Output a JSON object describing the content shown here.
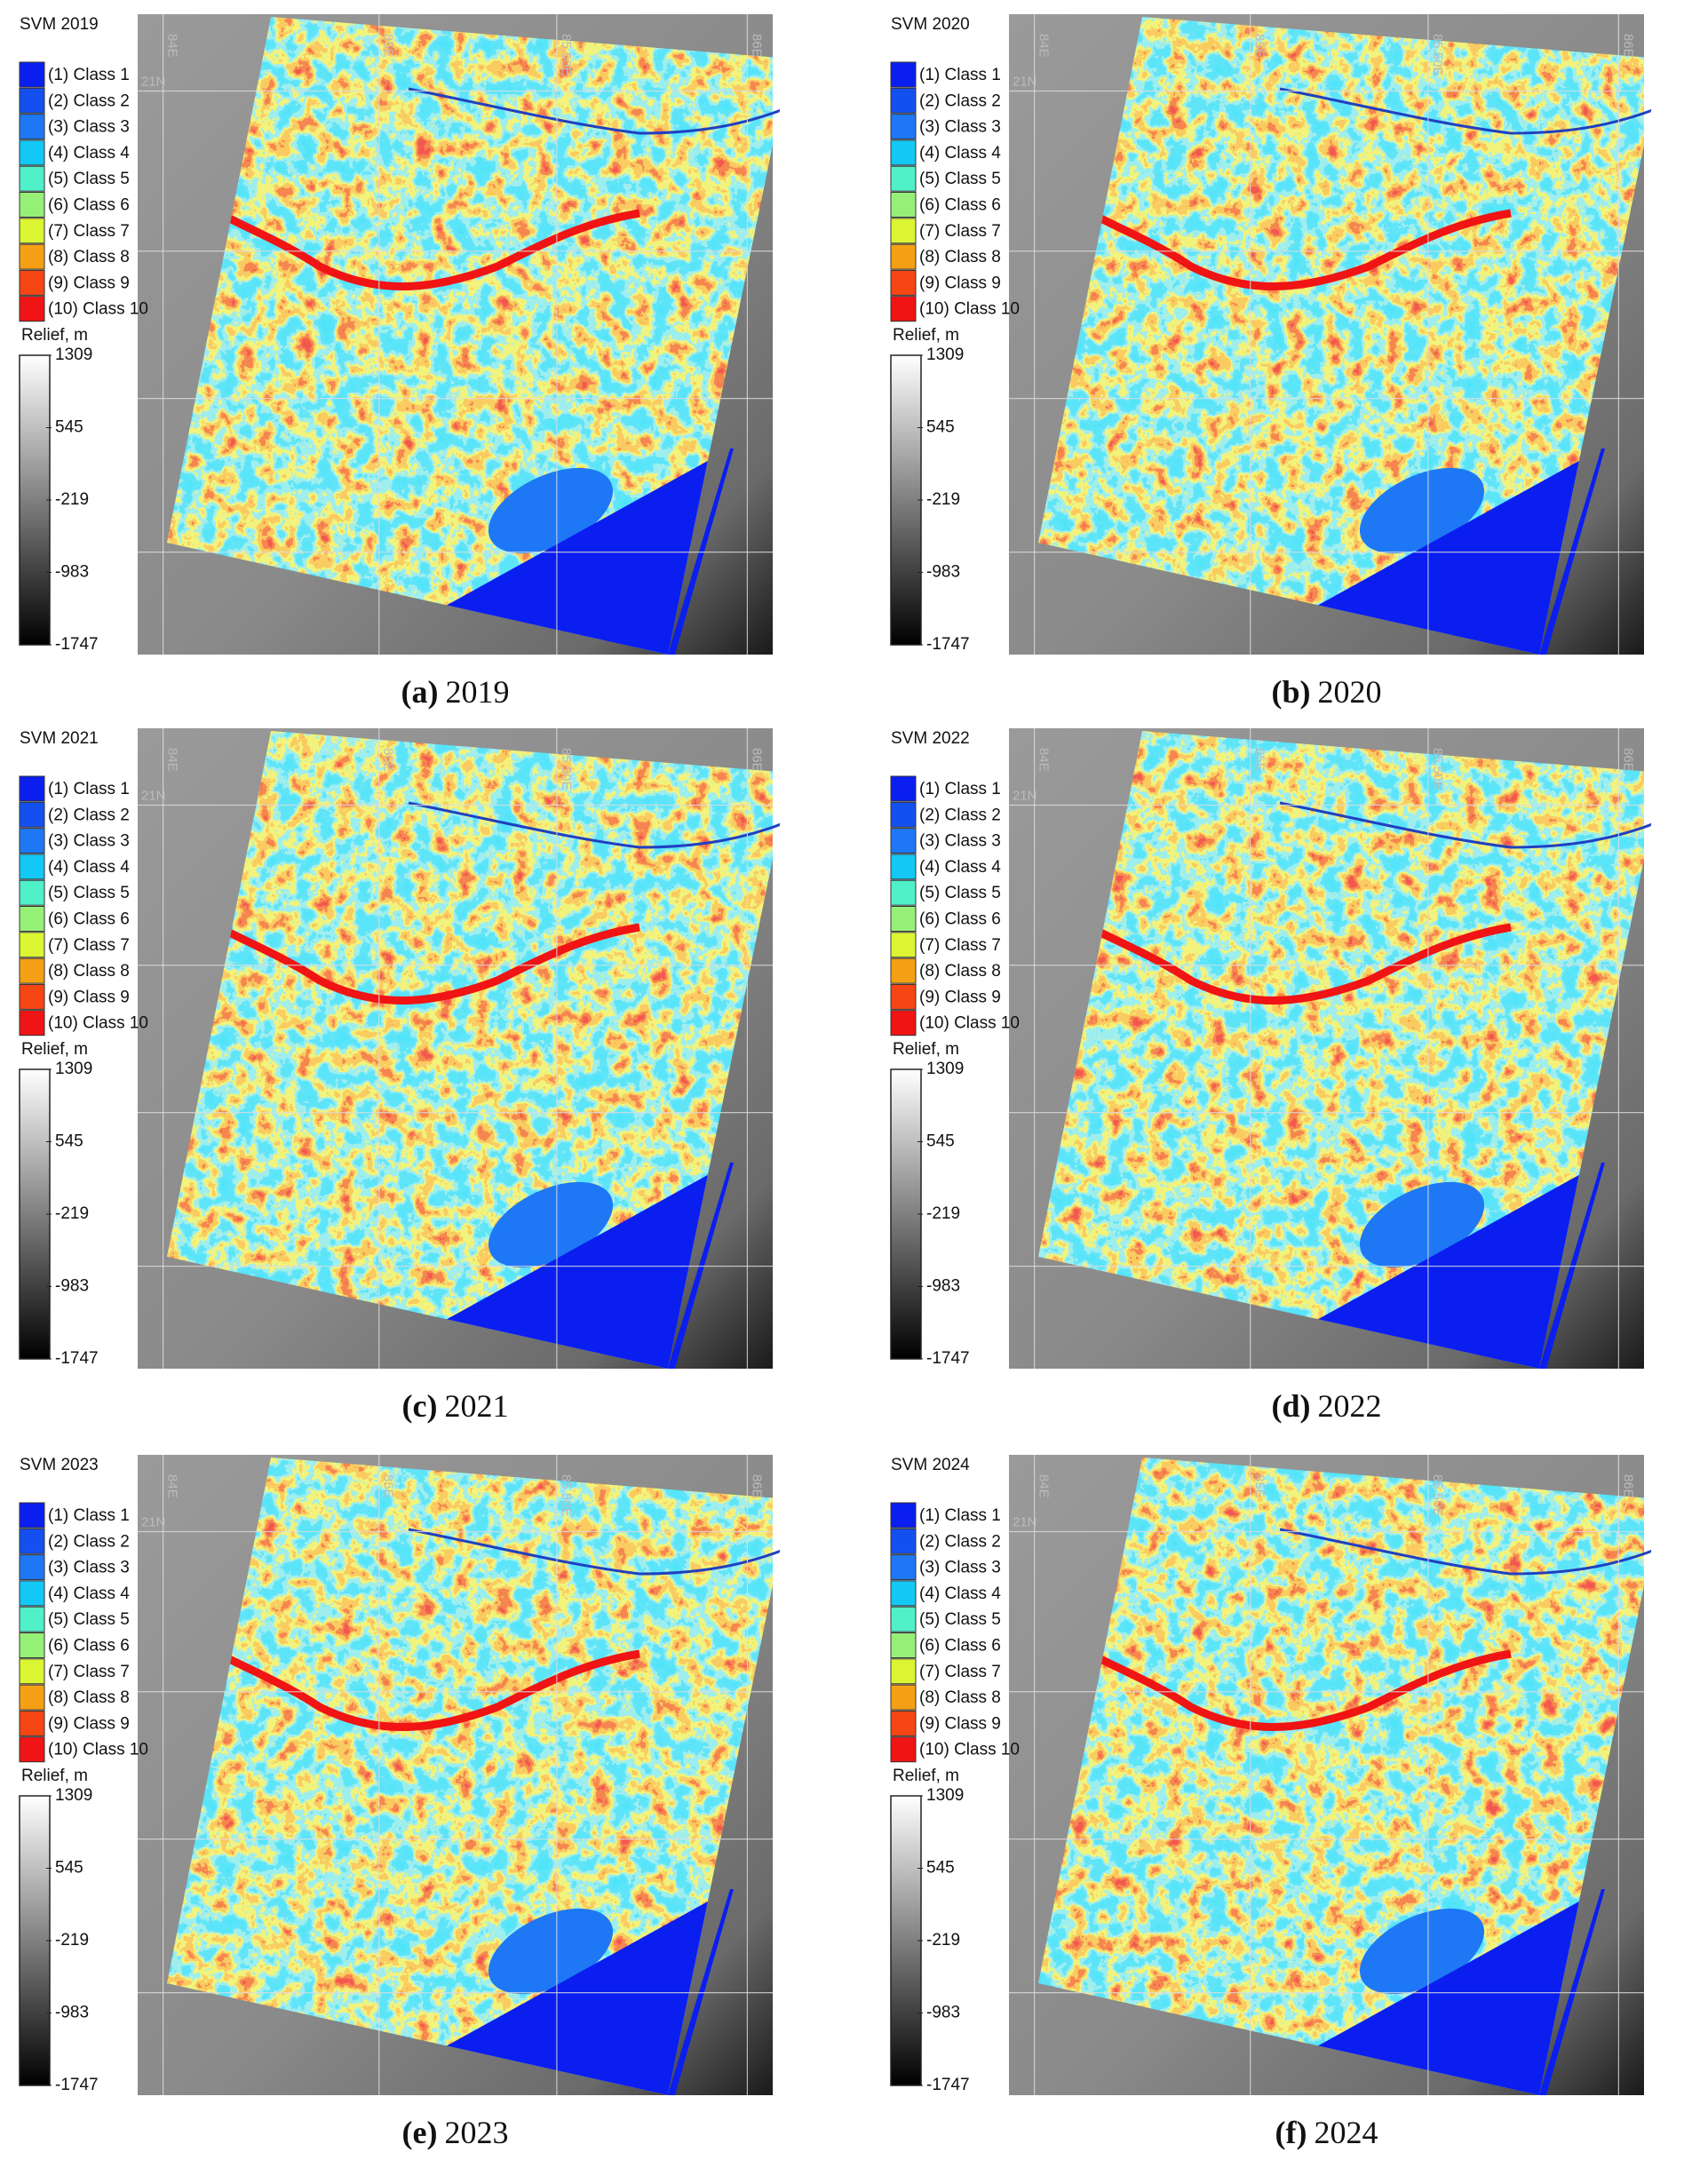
{
  "panels": [
    {
      "title": "SVM 2019",
      "caption": {
        "tag": "(a)",
        "year": "2019"
      }
    },
    {
      "title": "SVM 2020",
      "caption": {
        "tag": "(b)",
        "year": "2020"
      }
    },
    {
      "title": "SVM 2021",
      "caption": {
        "tag": "(c)",
        "year": "2021"
      }
    },
    {
      "title": "SVM 2022",
      "caption": {
        "tag": "(d)",
        "year": "2022"
      }
    },
    {
      "title": "SVM 2023",
      "caption": {
        "tag": "(e)",
        "year": "2023"
      }
    },
    {
      "title": "SVM 2024",
      "caption": {
        "tag": "(f)",
        "year": "2024"
      }
    }
  ],
  "legend": {
    "items": [
      {
        "label": "(1) Class 1",
        "color": "#0a1ef0"
      },
      {
        "label": "(2) Class 2",
        "color": "#1450f0"
      },
      {
        "label": "(3) Class 3",
        "color": "#1e78f5"
      },
      {
        "label": "(4) Class 4",
        "color": "#14c8f5"
      },
      {
        "label": "(5) Class 5",
        "color": "#50f0c8"
      },
      {
        "label": "(6) Class 6",
        "color": "#96f078"
      },
      {
        "label": "(7) Class 7",
        "color": "#dcf532"
      },
      {
        "label": "(8) Class 8",
        "color": "#f5a014"
      },
      {
        "label": "(9) Class 9",
        "color": "#f54614"
      },
      {
        "label": "(10) Class 10",
        "color": "#f01414"
      }
    ]
  },
  "relief": {
    "title": "Relief, m",
    "ticks": [
      1309,
      545,
      -219,
      -983,
      -1747
    ]
  },
  "graticule": {
    "lon": [
      "84E",
      "85E",
      "85.50E",
      "86E"
    ],
    "lat": [
      "21N"
    ]
  }
}
